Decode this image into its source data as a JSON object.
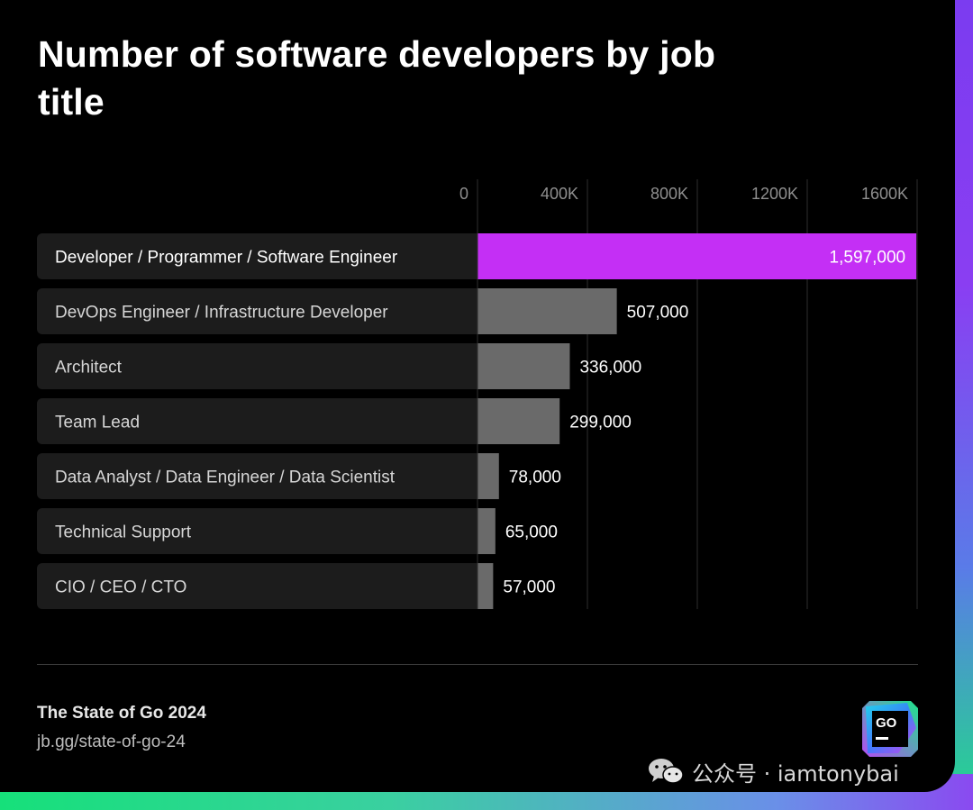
{
  "header": {
    "title": "Number of software developers by job title"
  },
  "chart_data": {
    "type": "bar",
    "orientation": "horizontal",
    "title": "Number of software developers by job title",
    "xlabel": "",
    "ylabel": "",
    "xlim": [
      0,
      1600000
    ],
    "ticks": [
      0,
      400000,
      800000,
      1200000,
      1600000
    ],
    "tick_labels": [
      "0",
      "400K",
      "800K",
      "1200K",
      "1600K"
    ],
    "grid": true,
    "categories": [
      "Developer / Programmer / Software Engineer",
      "DevOps Engineer / Infrastructure Developer",
      "Architect",
      "Team Lead",
      "Data Analyst / Data Engineer / Data Scientist",
      "Technical Support",
      "CIO / CEO / CTO"
    ],
    "values": [
      1597000,
      507000,
      336000,
      299000,
      78000,
      65000,
      57000
    ],
    "value_labels": [
      "1,597,000",
      "507,000",
      "336,000",
      "299,000",
      "78,000",
      "65,000",
      "57,000"
    ],
    "highlight_index": 0,
    "colors": {
      "highlight": "#c42ff5",
      "bar": "#6a6a6a",
      "label_bg": "#1c1c1c",
      "grid": "#2e2e2e",
      "tick": "#8f8f8f"
    }
  },
  "footer": {
    "source_title": "The State of Go 2024",
    "source_url": "jb.gg/state-of-go-24",
    "logo_text": "GO"
  },
  "watermark": {
    "icon": "wechat-icon",
    "text": "公众号 · iamtonybai"
  }
}
